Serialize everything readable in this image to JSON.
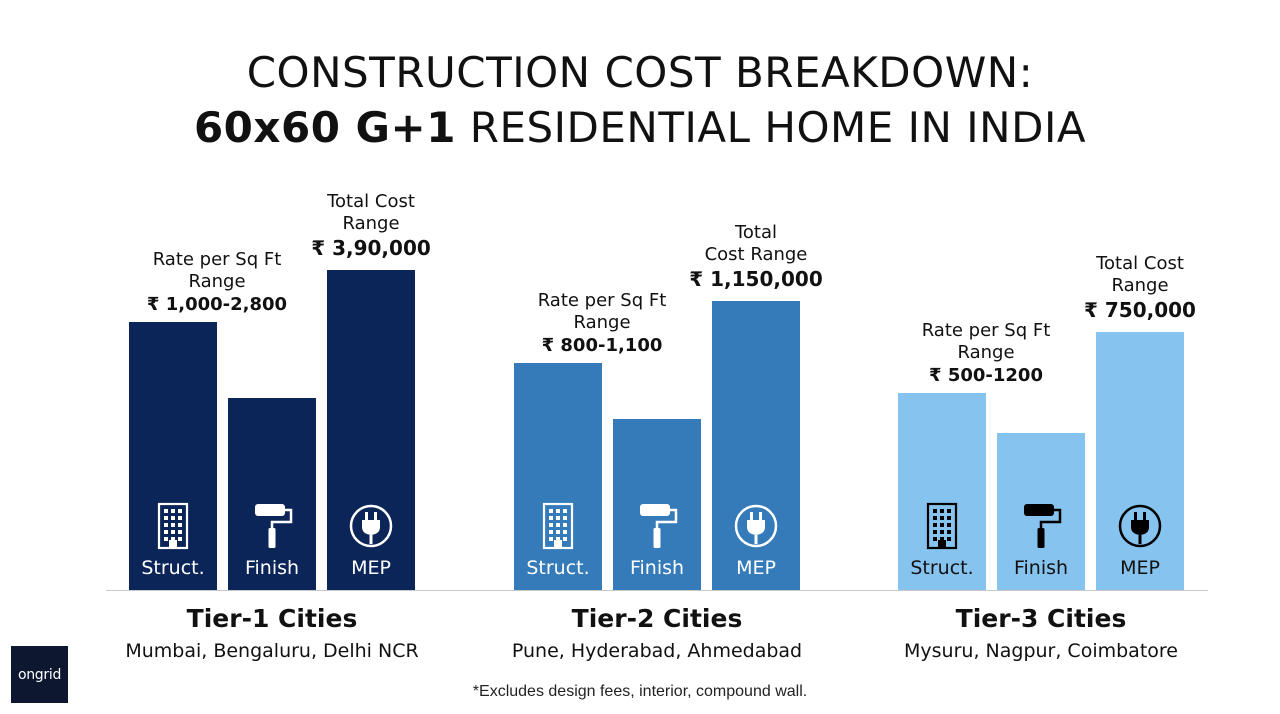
{
  "title": {
    "line1": "CONSTRUCTION COST BREAKDOWN:",
    "line2_bold": "60x60 G+1",
    "line2_rest": " RESIDENTIAL HOME IN INDIA"
  },
  "footnote": "*Excludes design fees, interior, compound wall.",
  "logo": "ongrid",
  "colors": {
    "tier1": "#0c2558",
    "tier2": "#357ab9",
    "tier3": "#86c3ee",
    "icon_dark_bg": "#ffffff",
    "icon_light_bg": "#000000"
  },
  "icons": [
    "building-icon",
    "paint-roller-icon",
    "plug-icon"
  ],
  "chart_data": {
    "type": "bar",
    "categories": [
      "Struct.",
      "Finish",
      "MEP"
    ],
    "ylim": [
      0,
      320
    ],
    "groups": [
      {
        "name": "Tier-1 Cities",
        "subtitle": "Mumbai, Bengaluru, Delhi NCR",
        "values": [
          268,
          192,
          320
        ],
        "rate_label": "Rate per Sq Ft",
        "rate_label2": "Range",
        "rate_value": "₹ 1,000-2,800",
        "total_label": "Total Cost",
        "total_label2": "Range",
        "total_value": "₹ 3,90,000"
      },
      {
        "name": "Tier-2 Cities",
        "subtitle": "Pune, Hyderabad, Ahmedabad",
        "values": [
          227,
          171,
          289
        ],
        "rate_label": "Rate per Sq Ft",
        "rate_label2": "Range",
        "rate_value": "₹ 800-1,100",
        "total_label": "Total",
        "total_label2": "Cost Range",
        "total_value": "₹ 1,150,000"
      },
      {
        "name": "Tier-3 Cities",
        "subtitle": "Mysuru, Nagpur, Coimbatore",
        "values": [
          197,
          157,
          258
        ],
        "rate_label": "Rate per Sq Ft",
        "rate_label2": "Range",
        "rate_value": "₹ 500-1200",
        "total_label": "Total Cost",
        "total_label2": "Range",
        "total_value": "₹ 750,000"
      }
    ]
  }
}
